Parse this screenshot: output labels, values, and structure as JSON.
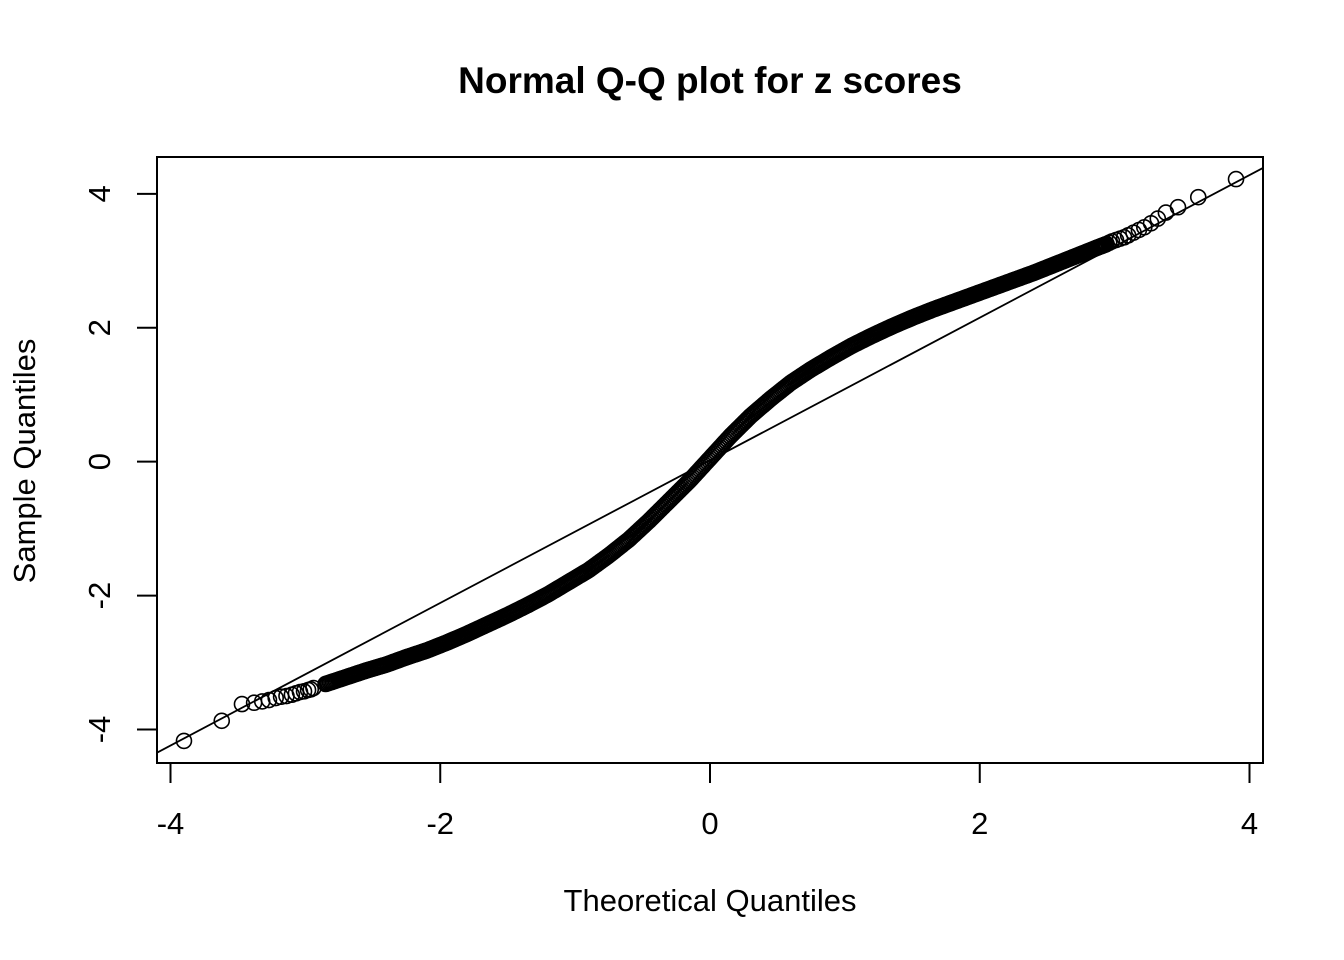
{
  "chart_data": {
    "type": "scatter",
    "title": "Normal Q-Q plot for z scores",
    "xlabel": "Theoretical Quantiles",
    "ylabel": "Sample Quantiles",
    "xlim": [
      -4.1,
      4.1
    ],
    "ylim": [
      -4.5,
      4.55
    ],
    "x_ticks": [
      -4,
      -2,
      0,
      2,
      4
    ],
    "y_ticks": [
      -4,
      -2,
      0,
      2,
      4
    ],
    "x_tick_labels": [
      "-4",
      "-2",
      "0",
      "2",
      "4"
    ],
    "y_tick_labels": [
      "-4",
      "-2",
      "0",
      "2",
      "4"
    ],
    "reference_line": {
      "intercept": 0.02,
      "slope": 1.065
    },
    "series": [
      {
        "marker": "open-circle",
        "x": [
          -3.9,
          -3.62,
          -3.47,
          -3.38,
          -3.32,
          -3.27,
          -3.22,
          -3.18,
          -3.14,
          -3.1,
          -3.07,
          -3.04,
          -3.01,
          -2.98,
          -2.96,
          -2.94,
          -2.85,
          -2.7,
          -2.55,
          -2.4,
          -2.25,
          -2.1,
          -1.95,
          -1.8,
          -1.65,
          -1.5,
          -1.35,
          -1.2,
          -1.05,
          -0.9,
          -0.75,
          -0.6,
          -0.45,
          -0.3,
          -0.15,
          0.0,
          0.15,
          0.3,
          0.45,
          0.6,
          0.75,
          0.9,
          1.05,
          1.2,
          1.35,
          1.5,
          1.65,
          1.8,
          1.95,
          2.1,
          2.25,
          2.4,
          2.55,
          2.7,
          2.85,
          2.94,
          2.96,
          2.98,
          3.01,
          3.04,
          3.07,
          3.1,
          3.14,
          3.18,
          3.22,
          3.27,
          3.32,
          3.38,
          3.47,
          3.62,
          3.9
        ],
        "y": [
          -4.17,
          -3.87,
          -3.62,
          -3.6,
          -3.58,
          -3.56,
          -3.53,
          -3.51,
          -3.5,
          -3.48,
          -3.46,
          -3.44,
          -3.43,
          -3.41,
          -3.4,
          -3.38,
          -3.32,
          -3.22,
          -3.12,
          -3.03,
          -2.92,
          -2.82,
          -2.7,
          -2.57,
          -2.43,
          -2.29,
          -2.14,
          -1.98,
          -1.8,
          -1.62,
          -1.4,
          -1.16,
          -0.88,
          -0.58,
          -0.28,
          0.05,
          0.38,
          0.68,
          0.94,
          1.18,
          1.38,
          1.56,
          1.73,
          1.88,
          2.02,
          2.15,
          2.27,
          2.38,
          2.49,
          2.6,
          2.71,
          2.82,
          2.94,
          3.06,
          3.18,
          3.25,
          3.27,
          3.29,
          3.31,
          3.33,
          3.35,
          3.38,
          3.42,
          3.46,
          3.5,
          3.56,
          3.63,
          3.72,
          3.8,
          3.95,
          4.22
        ]
      }
    ]
  }
}
